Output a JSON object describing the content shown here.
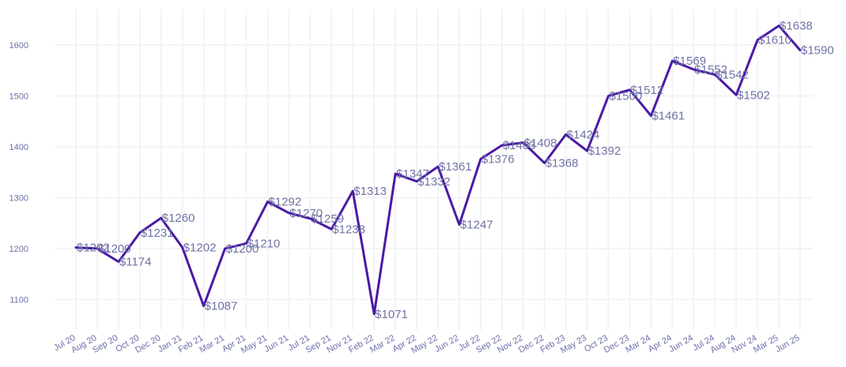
{
  "chart_data": {
    "type": "line",
    "title": "",
    "xlabel": "",
    "ylabel": "",
    "ylim": [
      1040,
      1670
    ],
    "yticks": [
      1100,
      1200,
      1300,
      1400,
      1500,
      1600
    ],
    "grid": true,
    "legend": "none",
    "line_color": "#4a1aa5",
    "categories": [
      "Jul 20",
      "Aug 20",
      "Sep 20",
      "Oct 20",
      "Dec 20",
      "Jan 21",
      "Feb 21",
      "Mar 21",
      "Apr 21",
      "May 21",
      "Jun 21",
      "Jul 21",
      "Sep 21",
      "Nov 21",
      "Feb 22",
      "Mar 22",
      "Apr 22",
      "May 22",
      "Jun 22",
      "Jul 22",
      "Sep 22",
      "Nov 22",
      "Dec 22",
      "Feb 23",
      "May 23",
      "Oct 23",
      "Dec 23",
      "Mar 24",
      "Apr 24",
      "Jun 24",
      "Jul 24",
      "Aug 24",
      "Nov 24",
      "Mar 25",
      "Jun 25"
    ],
    "values": [
      1202,
      1200,
      1174,
      1231,
      1260,
      1202,
      1087,
      1200,
      1210,
      1292,
      1270,
      1259,
      1238,
      1313,
      1071,
      1347,
      1332,
      1361,
      1247,
      1376,
      1403,
      1408,
      1368,
      1424,
      1392,
      1500,
      1512,
      1461,
      1569,
      1552,
      1542,
      1502,
      1610,
      1638,
      1590
    ],
    "data_labels": [
      "$1202",
      "$1200",
      "$1174",
      "$1231",
      "$1260",
      "$1202",
      "$1087",
      "$1200",
      "$1210",
      "$1292",
      "$1270",
      "$1259",
      "$1238",
      "$1313",
      "$1071",
      "$1347",
      "$1332",
      "$1361",
      "$1247",
      "$1376",
      "$1403",
      "$1408",
      "$1368",
      "$1424",
      "$1392",
      "$1500",
      "$1512",
      "$1461",
      "$1569",
      "$1552",
      "$1542",
      "$1502",
      "$1610",
      "$1638",
      "$1590"
    ]
  }
}
